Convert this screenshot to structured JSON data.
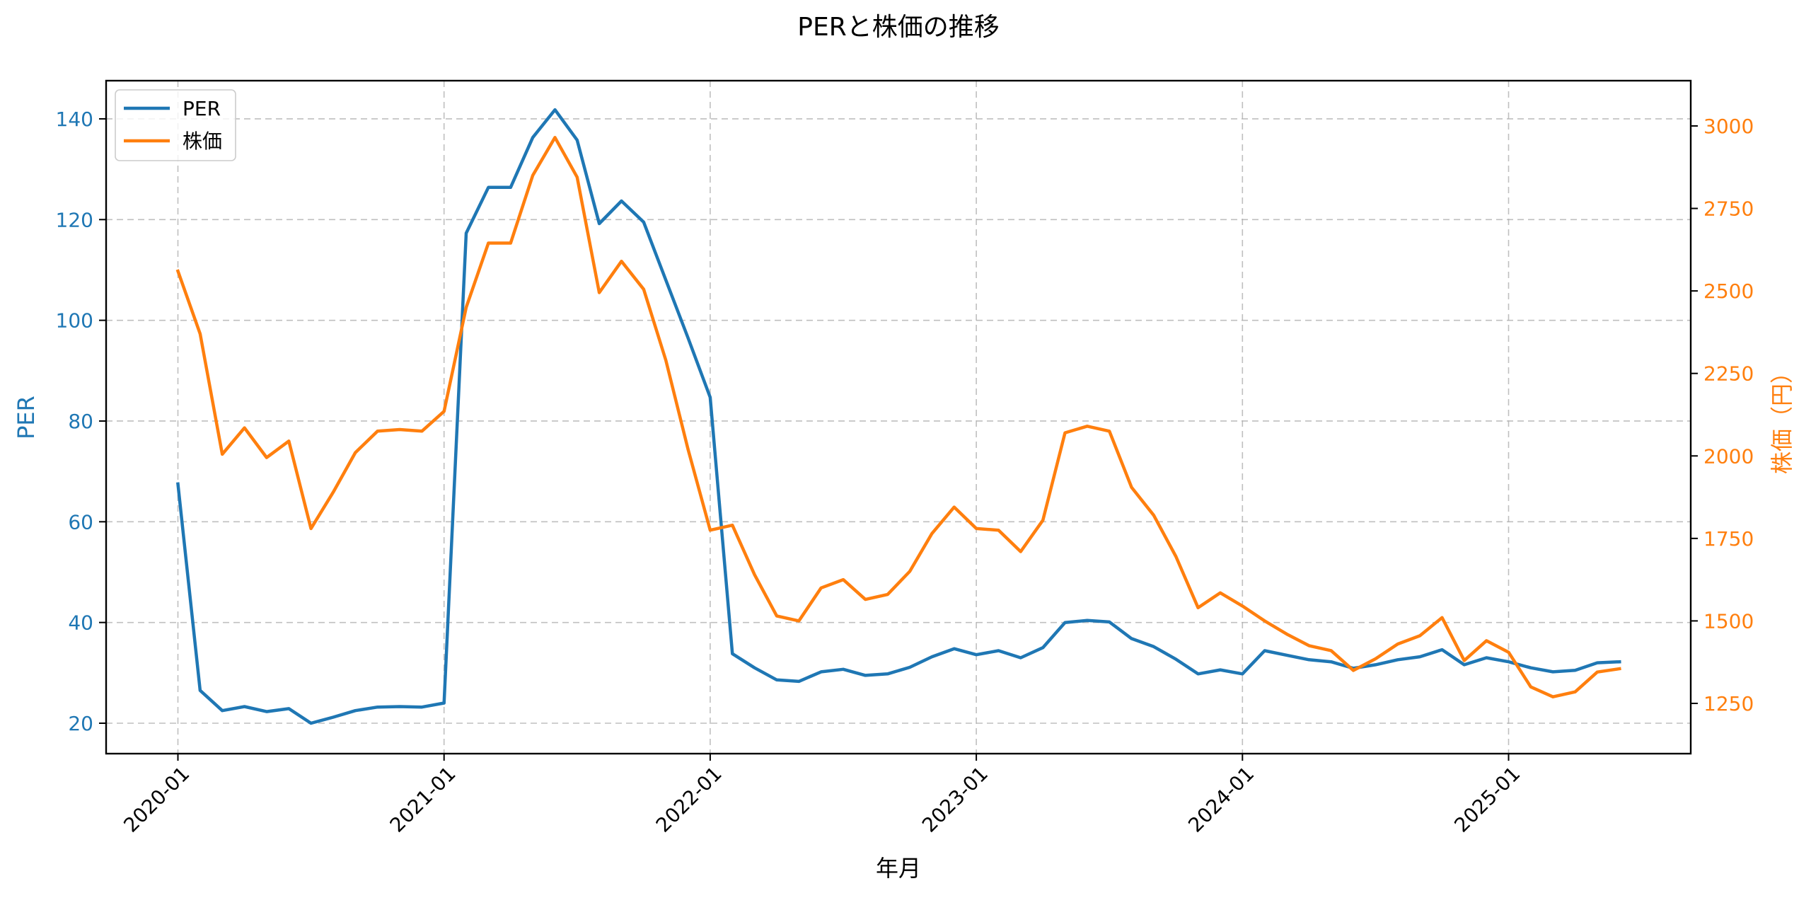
{
  "chart_data": {
    "type": "line",
    "title": "PERと株価の推移",
    "xlabel": "年月",
    "ylabel": "PER",
    "ylabel_right": "株価（円）",
    "x_ticks": [
      "2020-01",
      "2021-01",
      "2022-01",
      "2023-01",
      "2024-01",
      "2025-01"
    ],
    "y_ticks_left": [
      20,
      40,
      60,
      80,
      100,
      120,
      140
    ],
    "y_ticks_right": [
      1250,
      1500,
      1750,
      2000,
      2250,
      2500,
      2750,
      3000
    ],
    "ylim_left": [
      13.5,
      147.5
    ],
    "ylim_right": [
      1110,
      3115
    ],
    "grid": true,
    "legend_position": "upper left",
    "x": [
      "2020-01",
      "2020-02",
      "2020-03",
      "2020-04",
      "2020-05",
      "2020-06",
      "2020-07",
      "2020-08",
      "2020-09",
      "2020-10",
      "2020-11",
      "2020-12",
      "2021-01",
      "2021-02",
      "2021-03",
      "2021-04",
      "2021-05",
      "2021-06",
      "2021-07",
      "2021-08",
      "2021-09",
      "2021-10",
      "2021-11",
      "2021-12",
      "2022-01",
      "2022-02",
      "2022-03",
      "2022-04",
      "2022-05",
      "2022-06",
      "2022-07",
      "2022-08",
      "2022-09",
      "2022-10",
      "2022-11",
      "2022-12",
      "2023-01",
      "2023-02",
      "2023-03",
      "2023-04",
      "2023-05",
      "2023-06",
      "2023-07",
      "2023-08",
      "2023-09",
      "2023-10",
      "2023-11",
      "2023-12",
      "2024-01",
      "2024-02",
      "2024-03",
      "2024-04",
      "2024-05",
      "2024-06",
      "2024-07",
      "2024-08",
      "2024-09",
      "2024-10",
      "2024-11",
      "2024-12",
      "2025-01",
      "2025-02",
      "2025-03",
      "2025-04",
      "2025-05",
      "2025-06"
    ],
    "series": [
      {
        "name": "PER",
        "axis": "left",
        "color": "#1f77b4",
        "values": [
          67.5,
          26.5,
          22.5,
          23.3,
          22.3,
          22.9,
          20.0,
          21.2,
          22.5,
          23.2,
          23.3,
          23.2,
          24.0,
          117.3,
          126.4,
          126.4,
          136.3,
          141.8,
          135.8,
          119.2,
          123.7,
          119.5,
          108.0,
          96.5,
          84.7,
          33.8,
          31.0,
          28.6,
          28.3,
          30.2,
          30.7,
          29.5,
          29.8,
          31.1,
          33.2,
          34.8,
          33.6,
          34.4,
          33.0,
          35.0,
          40.0,
          40.4,
          40.1,
          36.8,
          35.2,
          32.7,
          29.8,
          30.6,
          29.8,
          34.4,
          33.5,
          32.6,
          32.2,
          30.9,
          31.6,
          32.6,
          33.2,
          34.6,
          31.6,
          33.0,
          32.2,
          31.0,
          30.2,
          30.5,
          32.0,
          32.2
        ]
      },
      {
        "name": "株価",
        "axis": "right",
        "color": "#ff7f0e",
        "values": [
          2560,
          2370,
          2005,
          2085,
          1995,
          2045,
          1780,
          1890,
          2010,
          2075,
          2080,
          2075,
          2135,
          2450,
          2645,
          2645,
          2850,
          2965,
          2845,
          2495,
          2590,
          2505,
          2290,
          2020,
          1775,
          1790,
          1640,
          1515,
          1500,
          1600,
          1625,
          1565,
          1580,
          1650,
          1765,
          1845,
          1780,
          1775,
          1710,
          1805,
          2070,
          2090,
          2075,
          1905,
          1820,
          1695,
          1540,
          1585,
          1545,
          1500,
          1460,
          1425,
          1410,
          1350,
          1385,
          1430,
          1455,
          1510,
          1380,
          1440,
          1405,
          1300,
          1270,
          1285,
          1345,
          1355
        ]
      }
    ]
  },
  "legend": {
    "items": [
      {
        "label": "PER",
        "color": "#1f77b4"
      },
      {
        "label": "株価",
        "color": "#ff7f0e"
      }
    ]
  }
}
